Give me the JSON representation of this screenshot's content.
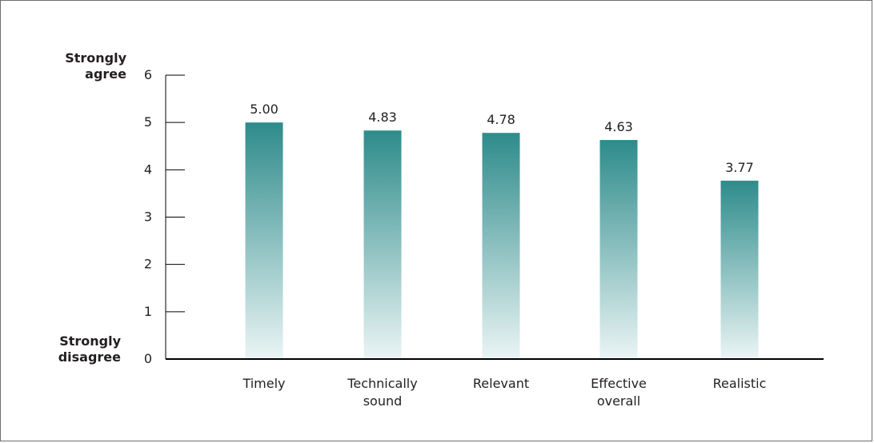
{
  "chart_data": {
    "type": "bar",
    "categories": [
      [
        "Timely"
      ],
      [
        "Technically",
        "sound"
      ],
      [
        "Relevant"
      ],
      [
        "Effective",
        "overall"
      ],
      [
        "Realistic"
      ]
    ],
    "values": [
      5.0,
      4.83,
      4.78,
      4.63,
      3.77
    ],
    "value_labels": [
      "5.00",
      "4.83",
      "4.78",
      "4.63",
      "3.77"
    ],
    "ylim": [
      0,
      6
    ],
    "yticks": [
      0,
      1,
      2,
      3,
      4,
      5,
      6
    ],
    "y_top_label": [
      "Strongly",
      "agree"
    ],
    "y_bottom_label": [
      "Strongly",
      "disagree"
    ],
    "grid": false,
    "colors": {
      "bar_top": "#2e8b8b",
      "bar_bottom": "#eaf4f4",
      "axis": "#000000"
    }
  }
}
